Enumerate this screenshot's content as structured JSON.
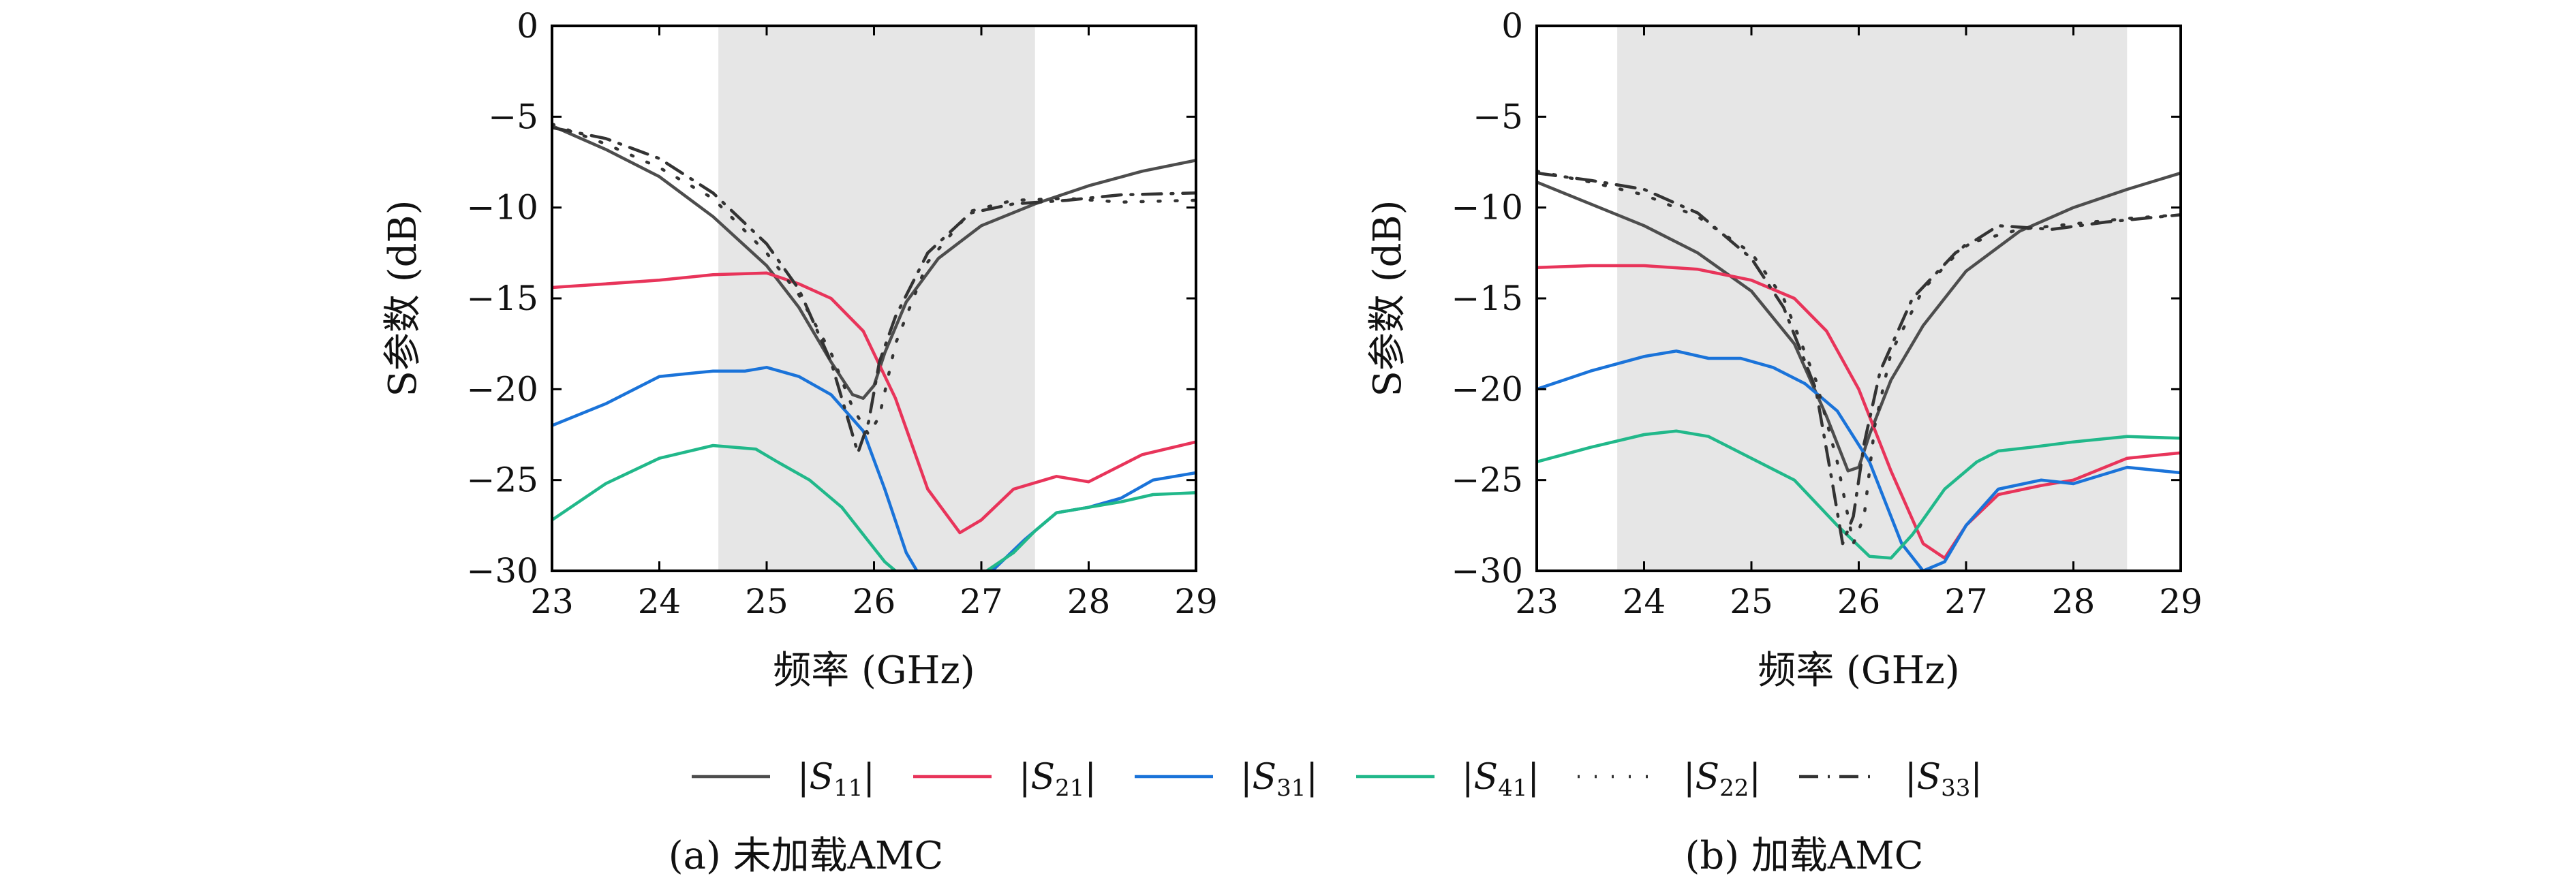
{
  "legend": {
    "entries": [
      {
        "label": "|S11|",
        "base": "S",
        "sub": "11",
        "color": "#4d4d4d",
        "style": "solid"
      },
      {
        "label": "|S21|",
        "base": "S",
        "sub": "21",
        "color": "#e8345a",
        "style": "solid"
      },
      {
        "label": "|S31|",
        "base": "S",
        "sub": "31",
        "color": "#1a73d9",
        "style": "solid"
      },
      {
        "label": "|S41|",
        "base": "S",
        "sub": "41",
        "color": "#21b88a",
        "style": "solid"
      },
      {
        "label": "|S22|",
        "base": "S",
        "sub": "22",
        "color": "#333333",
        "style": "dotted"
      },
      {
        "label": "|S33|",
        "base": "S",
        "sub": "33",
        "color": "#333333",
        "style": "dashdot"
      }
    ]
  },
  "chart_data": [
    {
      "type": "line",
      "caption": "(a) 未加载AMC",
      "xlabel": "频率 (GHz)",
      "ylabel": "S参数 (dB)",
      "xlim": [
        23,
        29
      ],
      "ylim": [
        -30,
        0
      ],
      "xticks": [
        "23",
        "24",
        "25",
        "26",
        "27",
        "28",
        "29"
      ],
      "yticks": [
        "0",
        "−5",
        "−10",
        "−15",
        "−20",
        "−25",
        "−30"
      ],
      "shaded_band": [
        24.55,
        27.5
      ],
      "series": [
        {
          "name": "|S11|",
          "color": "#4d4d4d",
          "style": "solid",
          "x": [
            23,
            23.5,
            24,
            24.5,
            25,
            25.3,
            25.6,
            25.8,
            25.9,
            26.0,
            26.1,
            26.3,
            26.6,
            27.0,
            27.5,
            28.0,
            28.5,
            29
          ],
          "y": [
            -5.5,
            -6.8,
            -8.3,
            -10.5,
            -13.2,
            -15.5,
            -18.5,
            -20.3,
            -20.5,
            -19.8,
            -18.0,
            -15.2,
            -12.8,
            -11.0,
            -9.8,
            -8.8,
            -8.0,
            -7.4
          ]
        },
        {
          "name": "|S21|",
          "color": "#e8345a",
          "style": "solid",
          "x": [
            23,
            23.5,
            24,
            24.5,
            25,
            25.3,
            25.6,
            25.9,
            26.2,
            26.5,
            26.8,
            27.0,
            27.3,
            27.7,
            28.0,
            28.5,
            29
          ],
          "y": [
            -14.4,
            -14.2,
            -14.0,
            -13.7,
            -13.6,
            -14.2,
            -15.0,
            -16.8,
            -20.5,
            -25.5,
            -27.9,
            -27.2,
            -25.5,
            -24.8,
            -25.1,
            -23.6,
            -22.9
          ]
        },
        {
          "name": "|S31|",
          "color": "#1a73d9",
          "style": "solid",
          "x": [
            23,
            23.5,
            24,
            24.5,
            24.8,
            25.0,
            25.3,
            25.6,
            25.9,
            26.1,
            26.3,
            26.4
          ],
          "y": [
            -22.0,
            -20.8,
            -19.3,
            -19.0,
            -19.0,
            -18.8,
            -19.3,
            -20.3,
            -22.3,
            -25.5,
            -29.0,
            -30.0
          ],
          "x2": [
            27.1,
            27.4,
            27.7,
            28.0,
            28.3,
            28.6,
            29
          ],
          "y2": [
            -30.0,
            -28.3,
            -26.8,
            -26.5,
            -26.0,
            -25.0,
            -24.6
          ]
        },
        {
          "name": "|S41|",
          "color": "#21b88a",
          "style": "solid",
          "x": [
            23,
            23.5,
            24,
            24.5,
            24.9,
            25.1,
            25.4,
            25.7,
            25.9,
            26.1,
            26.2
          ],
          "y": [
            -27.2,
            -25.2,
            -23.8,
            -23.1,
            -23.3,
            -24.0,
            -25.0,
            -26.5,
            -28.0,
            -29.5,
            -30.0
          ],
          "x2": [
            27.05,
            27.3,
            27.5,
            27.7,
            28.0,
            28.3,
            28.6,
            29
          ],
          "y2": [
            -30.0,
            -29.0,
            -27.8,
            -26.8,
            -26.5,
            -26.2,
            -25.8,
            -25.7
          ]
        },
        {
          "name": "|S22|",
          "color": "#333333",
          "style": "dotted",
          "x": [
            23,
            23.5,
            24,
            24.5,
            25,
            25.3,
            25.6,
            25.8,
            25.95,
            26.05,
            26.2,
            26.5,
            26.9,
            27.3,
            27.8,
            28.3,
            29
          ],
          "y": [
            -5.4,
            -6.5,
            -7.8,
            -9.5,
            -12.5,
            -14.8,
            -18.0,
            -21.0,
            -22.5,
            -21.5,
            -17.5,
            -13.0,
            -10.2,
            -9.6,
            -9.5,
            -9.7,
            -9.6
          ]
        },
        {
          "name": "|S33|",
          "color": "#333333",
          "style": "dashdot",
          "x": [
            23,
            23.5,
            24,
            24.5,
            25,
            25.3,
            25.6,
            25.75,
            25.85,
            25.95,
            26.05,
            26.2,
            26.5,
            26.9,
            27.3,
            27.8,
            28.3,
            29
          ],
          "y": [
            -5.6,
            -6.2,
            -7.3,
            -9.2,
            -12.0,
            -14.5,
            -18.5,
            -21.5,
            -23.5,
            -21.8,
            -18.5,
            -16.0,
            -12.5,
            -10.3,
            -9.8,
            -9.6,
            -9.3,
            -9.2
          ]
        }
      ]
    },
    {
      "type": "line",
      "caption": "(b) 加载AMC",
      "xlabel": "频率 (GHz)",
      "ylabel": "S参数 (dB)",
      "xlim": [
        23,
        29
      ],
      "ylim": [
        -30,
        0
      ],
      "xticks": [
        "23",
        "24",
        "25",
        "26",
        "27",
        "28",
        "29"
      ],
      "yticks": [
        "0",
        "−5",
        "−10",
        "−15",
        "−20",
        "−25",
        "−30"
      ],
      "shaded_band": [
        23.75,
        28.5
      ],
      "series": [
        {
          "name": "|S11|",
          "color": "#4d4d4d",
          "style": "solid",
          "x": [
            23,
            23.5,
            24,
            24.5,
            25,
            25.4,
            25.7,
            25.9,
            26.0,
            26.1,
            26.3,
            26.6,
            27.0,
            27.5,
            28.0,
            28.5,
            29
          ],
          "y": [
            -8.6,
            -9.8,
            -11.0,
            -12.5,
            -14.6,
            -17.5,
            -21.5,
            -24.5,
            -24.3,
            -22.5,
            -19.5,
            -16.5,
            -13.5,
            -11.3,
            -10.0,
            -9.0,
            -8.1
          ]
        },
        {
          "name": "|S21|",
          "color": "#e8345a",
          "style": "solid",
          "x": [
            23,
            23.5,
            24,
            24.5,
            25,
            25.4,
            25.7,
            26.0,
            26.3,
            26.6,
            26.8,
            27.0,
            27.3,
            27.7,
            28.0,
            28.5,
            29
          ],
          "y": [
            -13.3,
            -13.2,
            -13.2,
            -13.4,
            -14.0,
            -15.0,
            -16.8,
            -20.0,
            -24.5,
            -28.5,
            -29.3,
            -27.5,
            -25.8,
            -25.3,
            -25.0,
            -23.8,
            -23.5
          ]
        },
        {
          "name": "|S31|",
          "color": "#1a73d9",
          "style": "solid",
          "x": [
            23,
            23.5,
            24,
            24.3,
            24.6,
            24.9,
            25.2,
            25.5,
            25.8,
            26.1,
            26.4,
            26.6,
            26.8,
            27.0,
            27.3,
            27.7,
            28.0,
            28.5,
            29
          ],
          "y": [
            -20.0,
            -19.0,
            -18.2,
            -17.9,
            -18.3,
            -18.3,
            -18.8,
            -19.7,
            -21.2,
            -24.0,
            -28.5,
            -30.0,
            -29.5,
            -27.5,
            -25.5,
            -25.0,
            -25.2,
            -24.3,
            -24.6
          ]
        },
        {
          "name": "|S41|",
          "color": "#21b88a",
          "style": "solid",
          "x": [
            23,
            23.5,
            24,
            24.3,
            24.6,
            25.0,
            25.4,
            25.8,
            26.1,
            26.3,
            26.5,
            26.8,
            27.1,
            27.3,
            27.6,
            28.0,
            28.5,
            29
          ],
          "y": [
            -24.0,
            -23.2,
            -22.5,
            -22.3,
            -22.6,
            -23.8,
            -25.0,
            -27.5,
            -29.2,
            -29.3,
            -28.0,
            -25.5,
            -24.0,
            -23.4,
            -23.2,
            -22.9,
            -22.6,
            -22.7
          ]
        },
        {
          "name": "|S22|",
          "color": "#333333",
          "style": "dotted",
          "x": [
            23,
            23.5,
            24,
            24.5,
            25,
            25.3,
            25.6,
            25.8,
            25.95,
            26.05,
            26.15,
            26.3,
            26.6,
            27.0,
            27.5,
            28.0,
            28.5,
            29
          ],
          "y": [
            -8.0,
            -8.6,
            -9.3,
            -10.5,
            -12.5,
            -15.0,
            -19.5,
            -24.0,
            -28.5,
            -27.0,
            -22.0,
            -18.0,
            -14.5,
            -12.0,
            -11.2,
            -10.9,
            -10.6,
            -10.4
          ]
        },
        {
          "name": "|S33|",
          "color": "#333333",
          "style": "dashdot",
          "x": [
            23,
            23.5,
            24,
            24.5,
            25,
            25.3,
            25.6,
            25.75,
            25.85,
            25.95,
            26.05,
            26.2,
            26.5,
            26.9,
            27.3,
            27.8,
            28.3,
            29
          ],
          "y": [
            -8.1,
            -8.5,
            -9.0,
            -10.3,
            -12.8,
            -15.5,
            -20.0,
            -25.0,
            -28.5,
            -27.0,
            -23.0,
            -19.0,
            -15.0,
            -12.5,
            -11.0,
            -11.2,
            -10.8,
            -10.4
          ]
        }
      ]
    }
  ]
}
